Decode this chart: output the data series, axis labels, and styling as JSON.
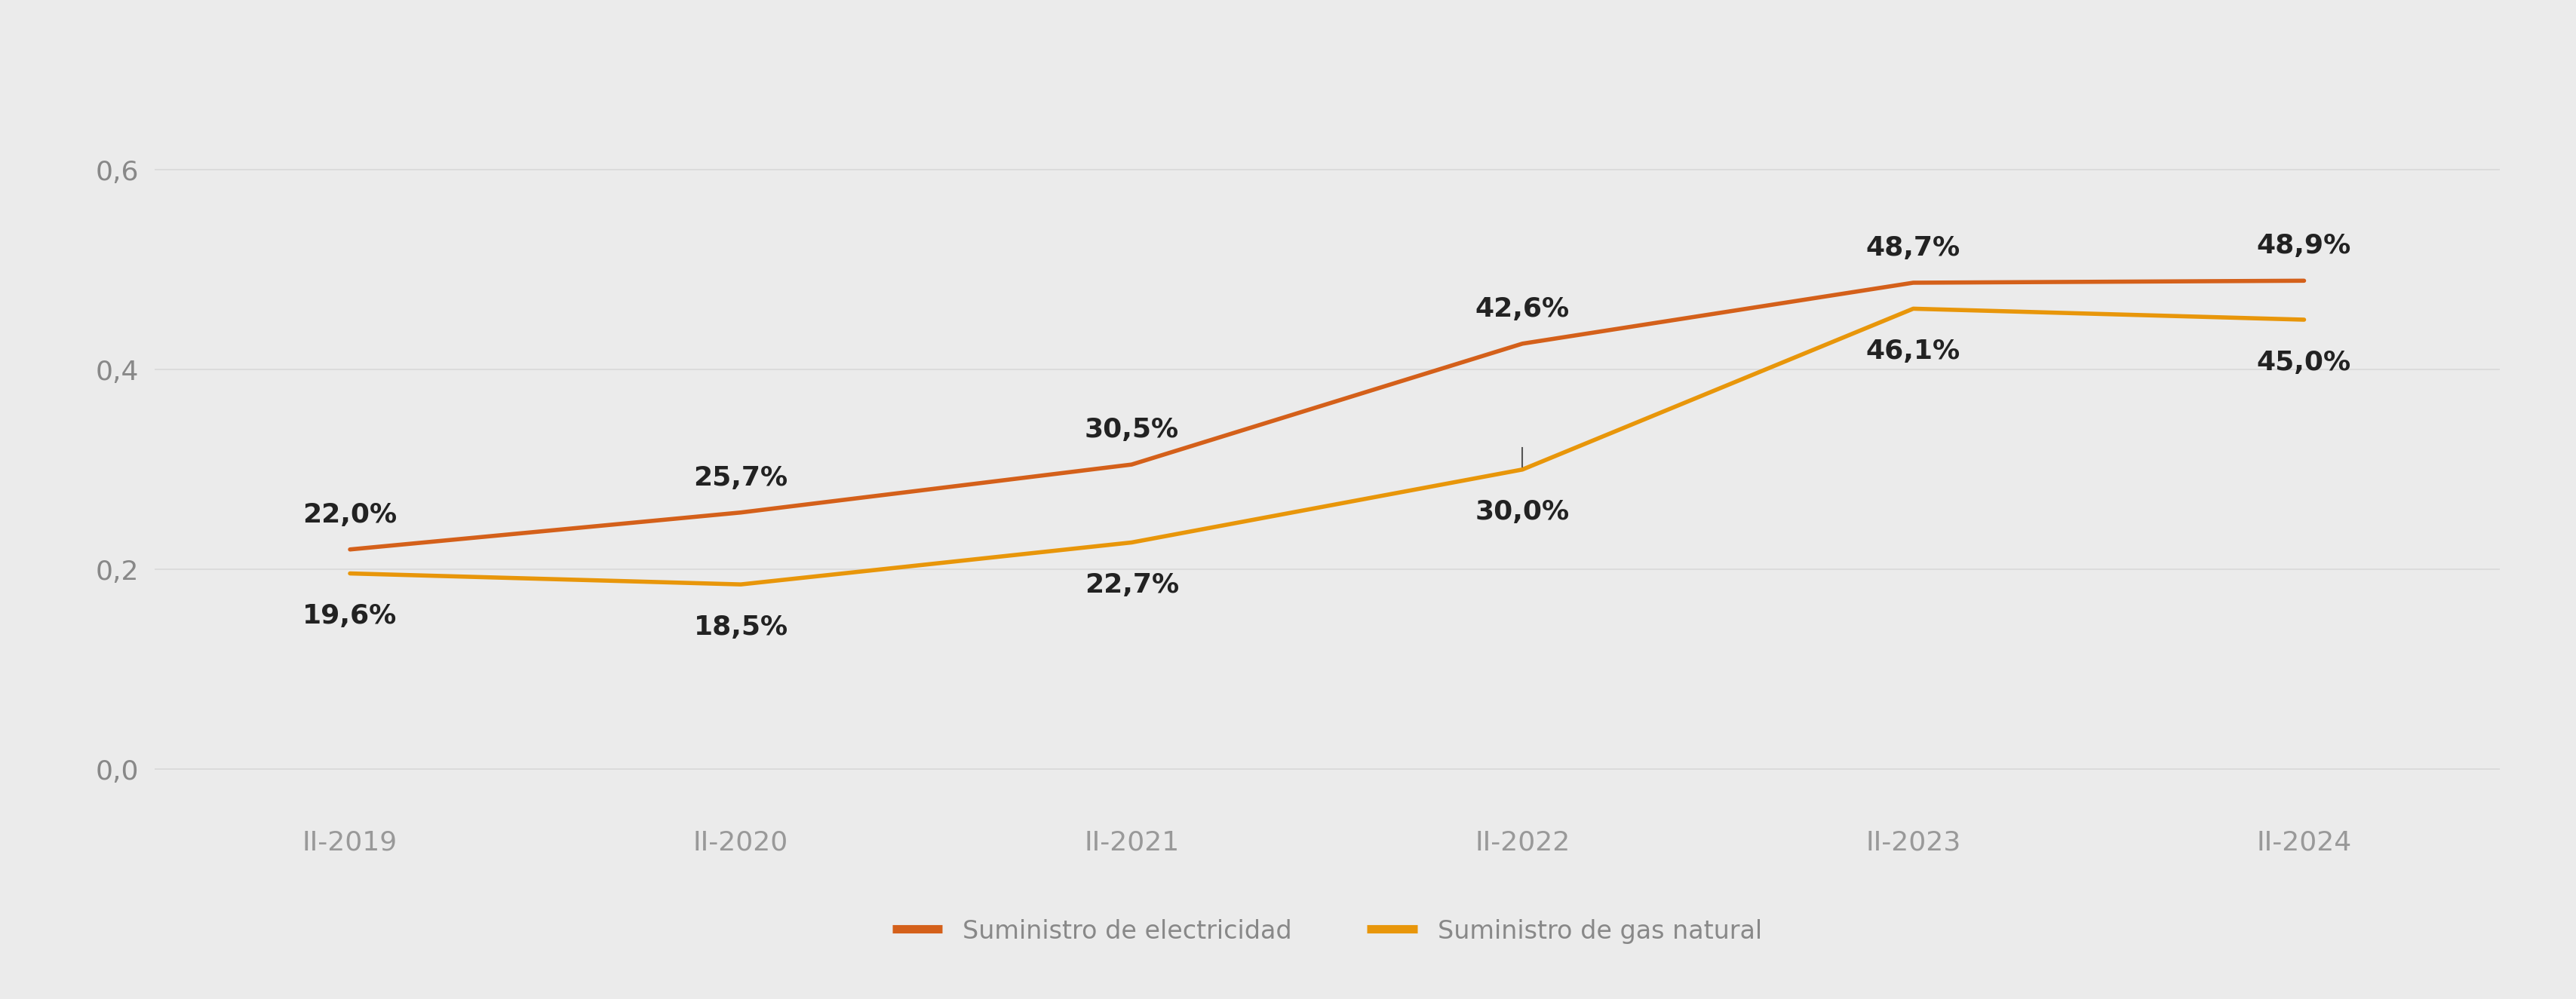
{
  "x_labels": [
    "II-2019",
    "II-2020",
    "II-2021",
    "II-2022",
    "II-2023",
    "II-2024"
  ],
  "electricidad": [
    0.22,
    0.257,
    0.305,
    0.426,
    0.487,
    0.489
  ],
  "gas_natural": [
    0.196,
    0.185,
    0.227,
    0.3,
    0.461,
    0.45
  ],
  "electricidad_labels": [
    "22,0%",
    "25,7%",
    "30,5%",
    "42,6%",
    "48,7%",
    "48,9%"
  ],
  "gas_natural_labels": [
    "19,6%",
    "18,5%",
    "22,7%",
    "30,0%",
    "46,1%",
    "45,0%"
  ],
  "color_electricidad": "#D4601A",
  "color_gas": "#E8960A",
  "background_color": "#EBEBEB",
  "grid_color": "#D8D8D8",
  "yticks": [
    0.0,
    0.2,
    0.4,
    0.6
  ],
  "ytick_labels": [
    "0,0",
    "0,2",
    "0,4",
    "0,6"
  ],
  "ylim": [
    -0.05,
    0.7
  ],
  "legend_label_electricidad": "Suministro de electricidad",
  "legend_label_gas": "Suministro de gas natural",
  "line_width": 4.0,
  "annotation_fontsize": 26,
  "axis_fontsize": 26,
  "legend_fontsize": 24,
  "elec_label_offsets": [
    0.022,
    0.022,
    0.022,
    0.022,
    0.022,
    0.022
  ],
  "gas_label_offsets": [
    -0.03,
    -0.03,
    -0.03,
    -0.03,
    -0.03,
    -0.03
  ]
}
